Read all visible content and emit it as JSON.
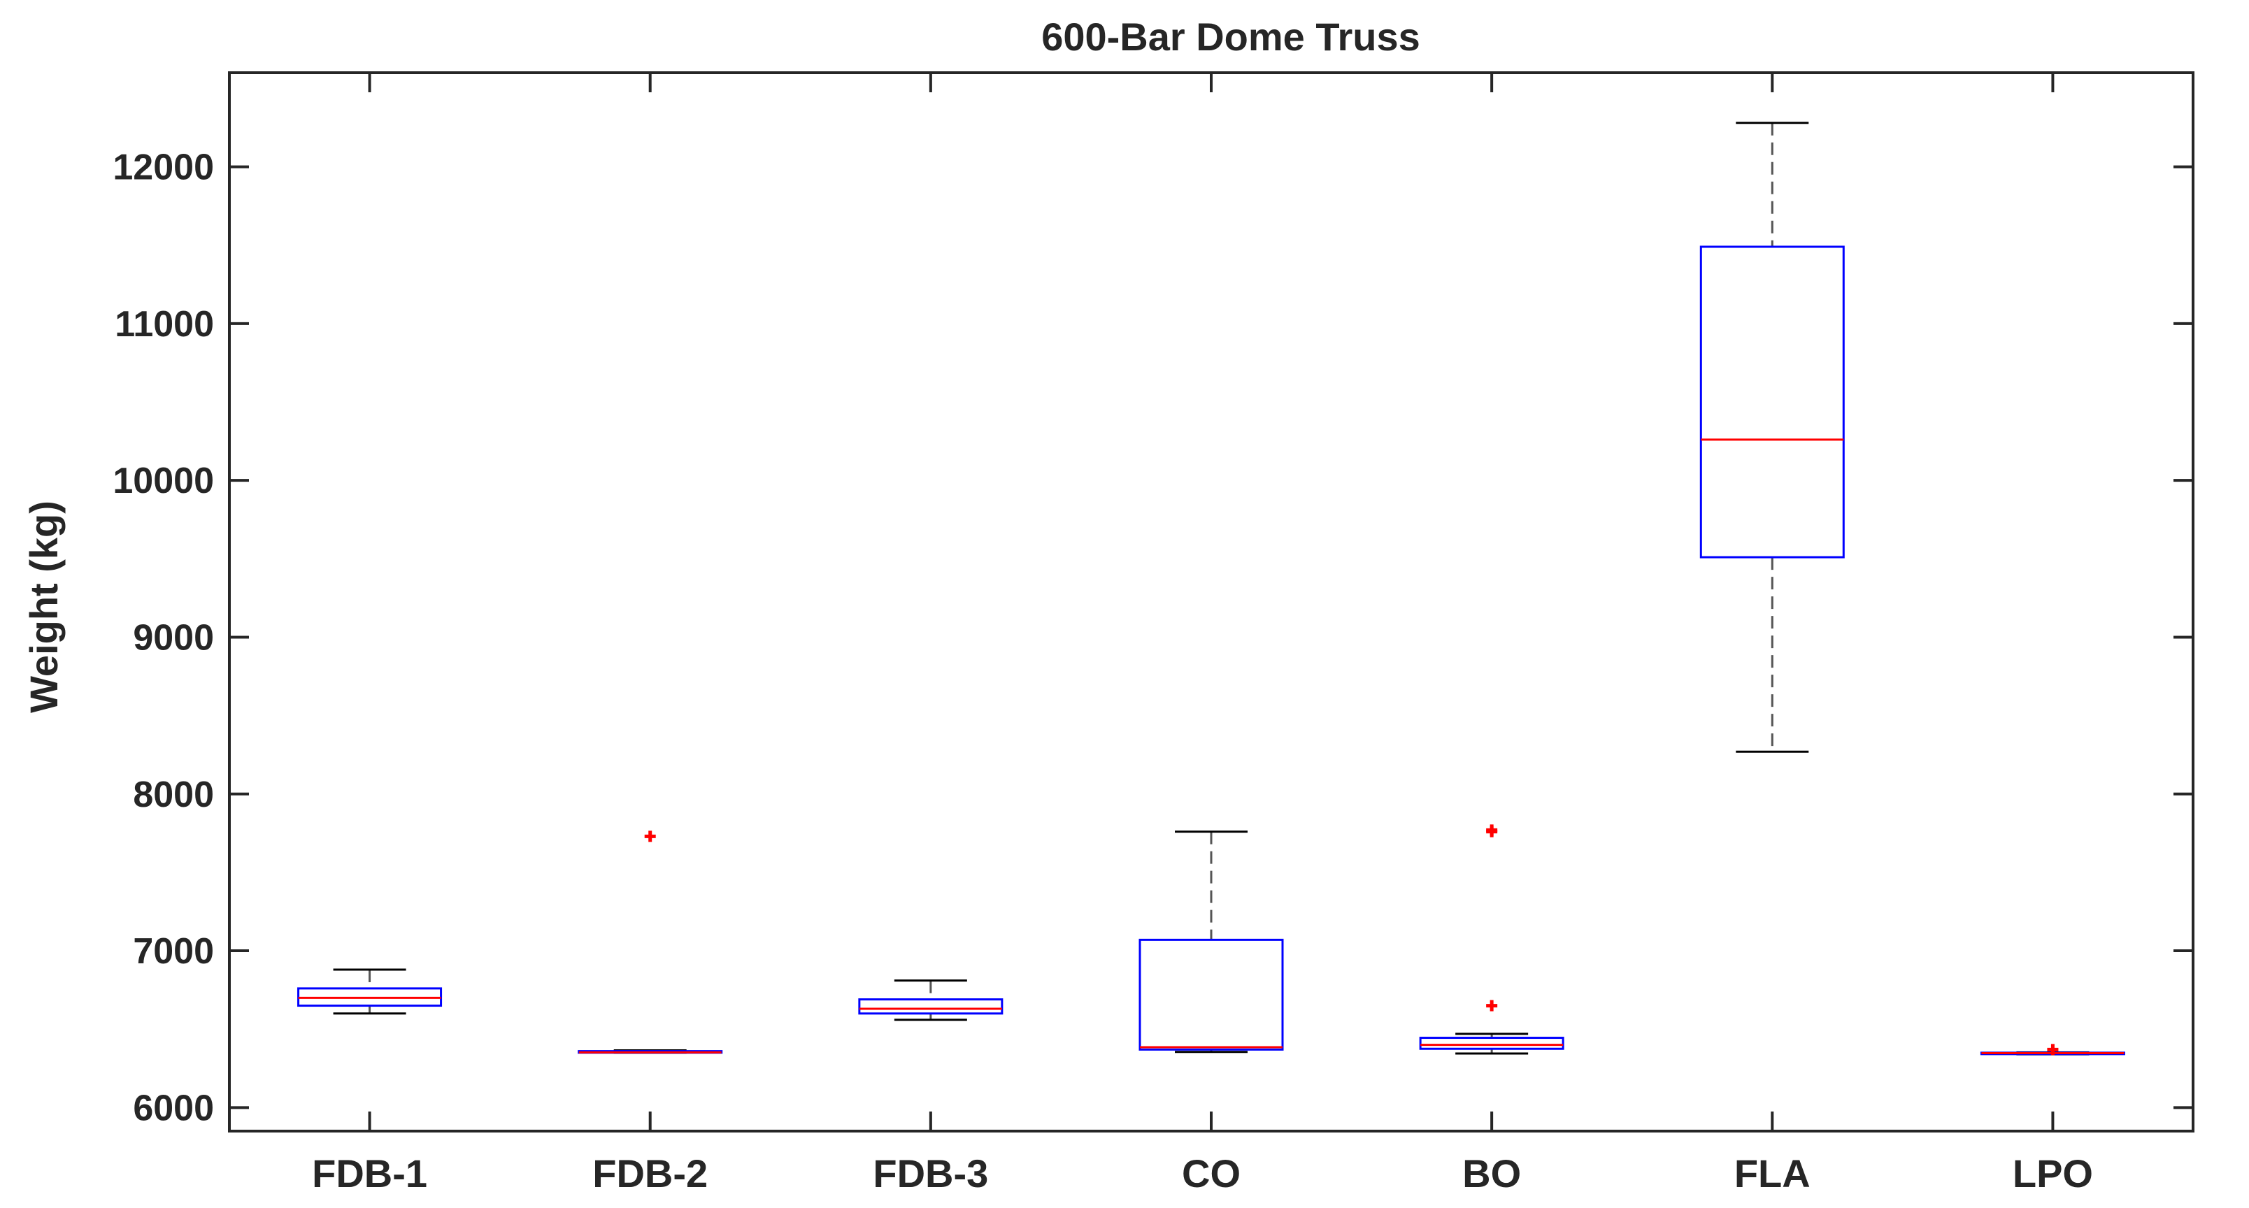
{
  "chart_data": {
    "type": "box",
    "title": "600-Bar Dome Truss",
    "xlabel": "",
    "ylabel": "Weight (kg)",
    "ylim": [
      5850,
      12600
    ],
    "yticks": [
      "6000",
      "7000",
      "8000",
      "9000",
      "10000",
      "11000",
      "12000"
    ],
    "grid": false,
    "categories": [
      "FDB-1",
      "FDB-2",
      "FDB-3",
      "CO",
      "BO",
      "FLA",
      "LPO"
    ],
    "boxes": [
      {
        "label": "FDB-1",
        "whisker_low": 6600,
        "q1": 6650,
        "median": 6700,
        "q3": 6760,
        "whisker_high": 6880,
        "outliers": []
      },
      {
        "label": "FDB-2",
        "whisker_low": 6350,
        "q1": 6350,
        "median": 6352,
        "q3": 6360,
        "whisker_high": 6365,
        "outliers": [
          7730
        ]
      },
      {
        "label": "FDB-3",
        "whisker_low": 6560,
        "q1": 6600,
        "median": 6630,
        "q3": 6690,
        "whisker_high": 6810,
        "outliers": []
      },
      {
        "label": "CO",
        "whisker_low": 6355,
        "q1": 6370,
        "median": 6385,
        "q3": 7070,
        "whisker_high": 7760,
        "outliers": []
      },
      {
        "label": "BO",
        "whisker_low": 6345,
        "q1": 6375,
        "median": 6400,
        "q3": 6445,
        "whisker_high": 6470,
        "outliers": [
          6650,
          7760,
          7770
        ]
      },
      {
        "label": "FLA",
        "whisker_low": 8270,
        "q1": 9510,
        "median": 10260,
        "q3": 11490,
        "whisker_high": 12280,
        "outliers": []
      },
      {
        "label": "LPO",
        "whisker_low": 6340,
        "q1": 6343,
        "median": 6347,
        "q3": 6350,
        "whisker_high": 6352,
        "outliers": [
          6370
        ]
      }
    ],
    "colors": {
      "box": "#0000ff",
      "median": "#ff0000",
      "whisker": "#000000",
      "outlier": "#ff0000",
      "axis": "#262626"
    }
  }
}
